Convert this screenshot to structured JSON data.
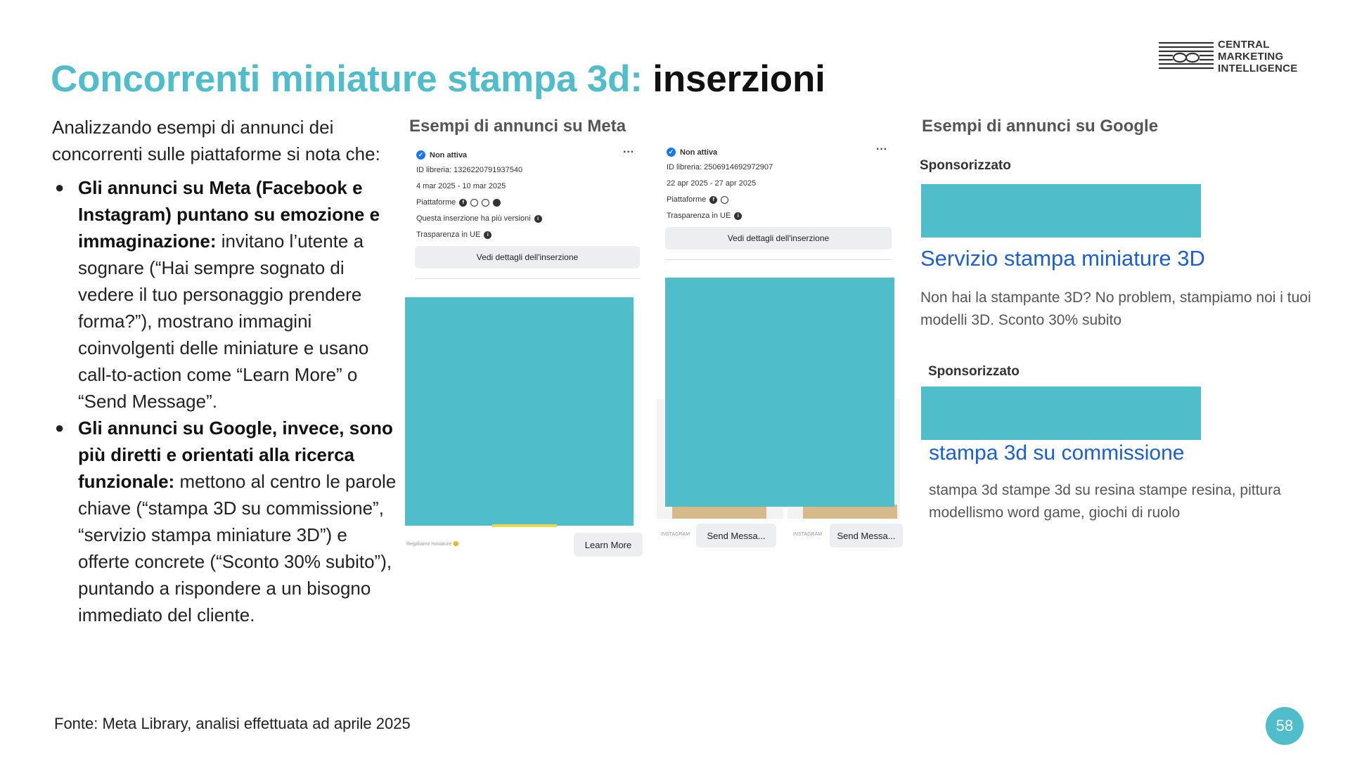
{
  "logo": {
    "line1": "CENTRAL",
    "line2": "MARKETING",
    "line3": "INTELLIGENCE"
  },
  "title": {
    "accent": "Concorrenti miniature stampa 3d:",
    "dark": "inserzioni"
  },
  "intro": "Analizzando esempi di annunci dei concorrenti sulle piattaforme si nota che:",
  "bullets": [
    {
      "bold": "Gli annunci su Meta (Facebook e Instagram) puntano su emozione e immaginazione:",
      "text": " invitano l’utente a sognare (“Hai sempre sognato di vedere il tuo personaggio prendere forma?”), mostrano immagini coinvolgenti delle miniature e usano call-to-action come “Learn More” o “Send Message”."
    },
    {
      "bold": "Gli annunci su Google, invece, sono più diretti e orientati alla ricerca funzionale:",
      "text": " mettono al centro le parole chiave (“stampa 3D su commissione”, “servizio stampa miniature 3D”) e offerte concrete (“Sconto 30% subito”), puntando a rispondere a un bisogno immediato del cliente."
    }
  ],
  "meta_heading": "Esempi di annunci su Meta",
  "google_heading": "Esempi di annunci su Google",
  "meta_ads": [
    {
      "status": "Non attiva",
      "library_id": "ID libreria: 1326220791937540",
      "dates": "4 mar 2025 - 10 mar 2025",
      "platforms_label": "Piattaforme",
      "versions_note": "Questa inserzione ha più versioni",
      "transparency": "Trasparenza in UE",
      "details_button": "Vedi dettagli dell'inserzione",
      "caption": "Regaliamo miniature 😊",
      "cta": "Learn More"
    },
    {
      "status": "Non attiva",
      "library_id": "ID libreria: 2506914692972907",
      "dates": "22 apr 2025 - 27 apr 2025",
      "platforms_label": "Piattaforme",
      "transparency": "Trasparenza in UE",
      "details_button": "Vedi dettagli dell'inserzione",
      "platform_tag": "INSTAGRAM",
      "cta": "Send Messa..."
    }
  ],
  "google_ads": [
    {
      "sponsored": "Sponsorizzato",
      "title": "Servizio stampa miniature 3D",
      "description": "Non hai la stampante 3D? No problem, stampiamo noi i tuoi modelli 3D. Sconto 30% subito"
    },
    {
      "sponsored": "Sponsorizzato",
      "title": "stampa 3d su commissione",
      "description": "stampa 3d stampe 3d su resina stampe resina, pittura modellismo word game, giochi di ruolo"
    }
  ],
  "footer": "Fonte: Meta Library, analisi effettuata ad aprile 2025",
  "page_number": "58",
  "colors": {
    "accent": "#4fbdca",
    "link_blue": "#1a5fd6",
    "placeholder": "#4fbdca"
  }
}
